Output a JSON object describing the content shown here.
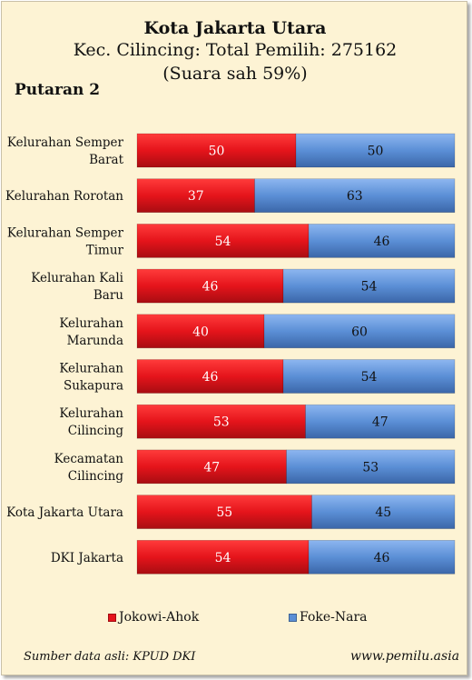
{
  "header": {
    "title": "Kota Jakarta Utara",
    "subtitle": "Kec. Cilincing: Total Pemilih: 275162",
    "valid_votes": "(Suara sah 59%)",
    "round": "Putaran 2"
  },
  "footer": {
    "source": "Sumber data asli: KPUD DKI",
    "website": "www.pemilu.asia"
  },
  "colors": {
    "jokowi": "#e8141b",
    "foke": "#5b8fd6",
    "background": "#fdf3d4"
  },
  "chart_data": {
    "type": "bar",
    "orientation": "horizontal",
    "stacked": true,
    "percent": true,
    "categories": [
      [
        "Kelurahan Semper",
        "Barat"
      ],
      [
        "Kelurahan Rorotan"
      ],
      [
        "Kelurahan Semper",
        "Timur"
      ],
      [
        "Kelurahan Kali",
        "Baru"
      ],
      [
        "Kelurahan",
        "Marunda"
      ],
      [
        "Kelurahan",
        "Sukapura"
      ],
      [
        "Kelurahan",
        "Cilincing"
      ],
      [
        "Kecamatan",
        "Cilincing"
      ],
      [
        "Kota Jakarta Utara"
      ],
      [
        "DKI Jakarta"
      ]
    ],
    "series": [
      {
        "name": "Jokowi-Ahok",
        "values": [
          50,
          37,
          54,
          46,
          40,
          46,
          53,
          47,
          55,
          54
        ]
      },
      {
        "name": "Foke-Nara",
        "values": [
          50,
          63,
          46,
          54,
          60,
          54,
          47,
          53,
          45,
          46
        ]
      }
    ],
    "xlim": [
      0,
      100
    ],
    "grid": false,
    "legend": "bottom"
  }
}
